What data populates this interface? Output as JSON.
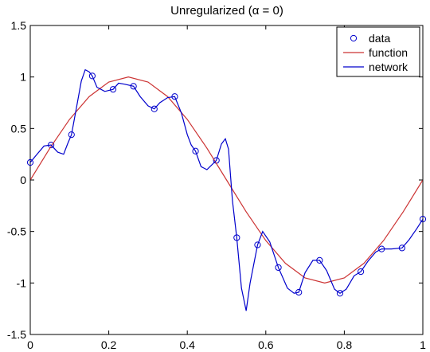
{
  "chart_data": {
    "type": "line",
    "title": "Unregularized (α = 0)",
    "xlabel": "",
    "ylabel": "",
    "xlim": [
      0,
      1
    ],
    "ylim": [
      -1.5,
      1.5
    ],
    "x_ticks": [
      "0",
      "0.2",
      "0.4",
      "0.6",
      "0.8",
      "1"
    ],
    "x_tick_values": [
      0,
      0.2,
      0.4,
      0.6,
      0.8,
      1
    ],
    "y_ticks": [
      "1.5",
      "1",
      "0.5",
      "0",
      "-0.5",
      "-1",
      "-1.5"
    ],
    "y_tick_values": [
      1.5,
      1,
      0.5,
      0,
      -0.5,
      -1,
      -1.5
    ],
    "grid": false,
    "legend_position": "top-right",
    "series": [
      {
        "name": "data",
        "style": "markers",
        "color": "#0000cc",
        "x": [
          0.0,
          0.053,
          0.105,
          0.158,
          0.211,
          0.263,
          0.316,
          0.368,
          0.421,
          0.474,
          0.526,
          0.579,
          0.632,
          0.684,
          0.737,
          0.789,
          0.842,
          0.895,
          0.947,
          1.0
        ],
        "y": [
          0.17,
          0.34,
          0.44,
          1.01,
          0.88,
          0.91,
          0.69,
          0.81,
          0.28,
          0.19,
          -0.56,
          -0.63,
          -0.85,
          -1.09,
          -0.78,
          -1.1,
          -0.89,
          -0.67,
          -0.66,
          -0.38
        ]
      },
      {
        "name": "function",
        "style": "line",
        "color": "#cc3333",
        "x": [
          0,
          0.05,
          0.1,
          0.15,
          0.2,
          0.25,
          0.3,
          0.35,
          0.4,
          0.45,
          0.5,
          0.55,
          0.6,
          0.65,
          0.7,
          0.75,
          0.8,
          0.85,
          0.9,
          0.95,
          1.0
        ],
        "y": [
          0,
          0.309,
          0.588,
          0.809,
          0.951,
          1.0,
          0.951,
          0.809,
          0.588,
          0.309,
          0,
          -0.309,
          -0.588,
          -0.809,
          -0.951,
          -1.0,
          -0.951,
          -0.809,
          -0.588,
          -0.309,
          0
        ]
      },
      {
        "name": "network",
        "style": "line",
        "color": "#0000cc",
        "x": [
          0.0,
          0.015,
          0.035,
          0.053,
          0.07,
          0.085,
          0.095,
          0.105,
          0.12,
          0.13,
          0.14,
          0.15,
          0.158,
          0.17,
          0.19,
          0.211,
          0.225,
          0.24,
          0.263,
          0.28,
          0.3,
          0.316,
          0.33,
          0.35,
          0.368,
          0.385,
          0.4,
          0.41,
          0.421,
          0.435,
          0.45,
          0.474,
          0.487,
          0.497,
          0.505,
          0.515,
          0.526,
          0.538,
          0.55,
          0.56,
          0.579,
          0.592,
          0.61,
          0.632,
          0.655,
          0.672,
          0.684,
          0.7,
          0.72,
          0.737,
          0.755,
          0.775,
          0.789,
          0.805,
          0.825,
          0.842,
          0.86,
          0.88,
          0.895,
          0.92,
          0.947,
          0.965,
          0.985,
          1.0
        ],
        "y": [
          0.17,
          0.24,
          0.33,
          0.34,
          0.27,
          0.25,
          0.35,
          0.44,
          0.75,
          0.96,
          1.07,
          1.05,
          1.01,
          0.9,
          0.86,
          0.88,
          0.94,
          0.93,
          0.91,
          0.81,
          0.72,
          0.69,
          0.75,
          0.8,
          0.81,
          0.65,
          0.44,
          0.34,
          0.28,
          0.13,
          0.1,
          0.19,
          0.35,
          0.4,
          0.3,
          -0.2,
          -0.56,
          -1.05,
          -1.27,
          -1.0,
          -0.63,
          -0.5,
          -0.6,
          -0.85,
          -1.05,
          -1.1,
          -1.09,
          -0.9,
          -0.78,
          -0.78,
          -0.88,
          -1.06,
          -1.1,
          -1.06,
          -0.93,
          -0.89,
          -0.79,
          -0.7,
          -0.67,
          -0.67,
          -0.66,
          -0.58,
          -0.47,
          -0.38
        ]
      }
    ]
  }
}
